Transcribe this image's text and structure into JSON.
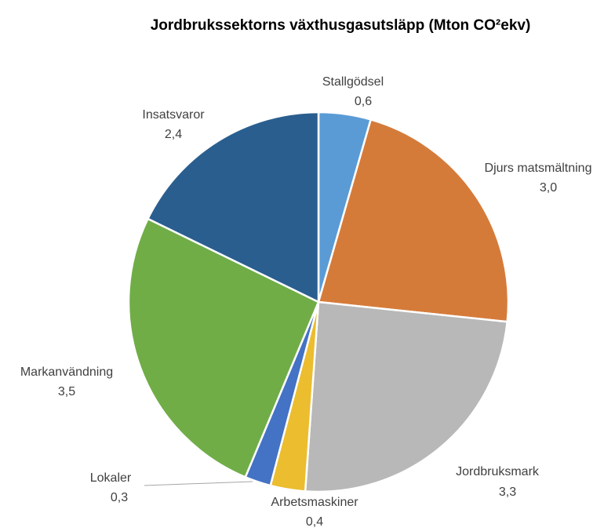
{
  "chart_data": {
    "type": "pie",
    "title": "Jordbrukssektorns växthusgasutsläpp (Mton CO²ekv)",
    "categories": [
      "Stallgödsel",
      "Djurs matsmältning",
      "Jordbruksmark",
      "Arbetsmaskiner",
      "Lokaler",
      "Markanvändning",
      "Insatsvaror"
    ],
    "values": [
      0.6,
      3.0,
      3.3,
      0.4,
      0.3,
      3.5,
      2.4
    ],
    "value_labels": [
      "0,6",
      "3,0",
      "3,3",
      "0,4",
      "0,3",
      "3,5",
      "2,4"
    ],
    "colors": [
      "#5b9bd5",
      "#d57b3a",
      "#b8b8b8",
      "#ebbd2f",
      "#4472c4",
      "#70ad47",
      "#2a5e8f"
    ]
  }
}
